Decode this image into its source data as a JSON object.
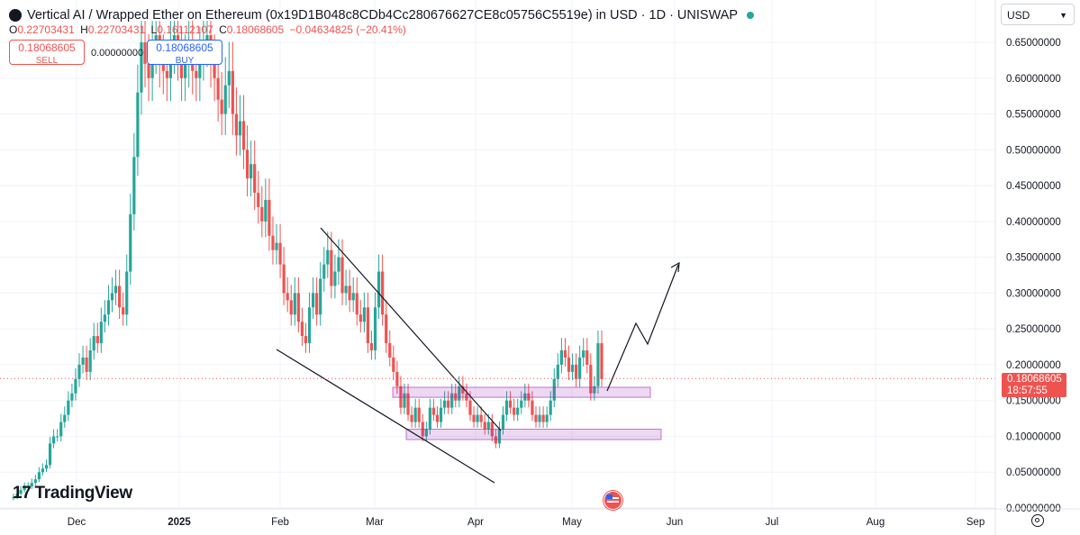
{
  "header": {
    "title": "Vertical AI / Wrapped Ether on Ethereum (0x19D1B048c8CDb4Cc280676627CE8c05756C5519e) in USD · 1D · UNISWAP",
    "o_label": "O",
    "o_value": "0.22703431",
    "h_label": "H",
    "h_value": "0.22703431",
    "l_label": "L",
    "l_value": "0.16112107",
    "c_label": "C",
    "c_value": "0.18068605",
    "change": "−0.04634825 (−20.41%)"
  },
  "trade": {
    "sell_price": "0.18068605",
    "sell_label": "SELL",
    "spread": "0.00000000",
    "buy_price": "0.18068605",
    "buy_label": "BUY"
  },
  "currency": "USD",
  "brand": "TradingView",
  "last_price": {
    "value": "0.18068605",
    "countdown": "18:57:55"
  },
  "colors": {
    "up": "#26a69a",
    "down": "#ef5350",
    "zone": "#9c27b0",
    "line": "#131722"
  },
  "chart_data": {
    "type": "candlestick",
    "y_ticks": [
      "0.65000000",
      "0.60000000",
      "0.55000000",
      "0.50000000",
      "0.45000000",
      "0.40000000",
      "0.35000000",
      "0.30000000",
      "0.25000000",
      "0.20000000",
      "0.15000000",
      "0.10000000",
      "0.05000000",
      "0.00000000"
    ],
    "ylim": [
      0.0,
      0.65
    ],
    "x_ticks": [
      "Dec",
      "2025",
      "Feb",
      "Mar",
      "Apr",
      "May",
      "Jun",
      "Jul",
      "Aug",
      "Sep"
    ],
    "candles_close": [
      0.015,
      0.02,
      0.025,
      0.03,
      0.03,
      0.035,
      0.04,
      0.05,
      0.055,
      0.06,
      0.09,
      0.1,
      0.1,
      0.12,
      0.13,
      0.15,
      0.16,
      0.18,
      0.2,
      0.21,
      0.19,
      0.22,
      0.24,
      0.23,
      0.26,
      0.27,
      0.29,
      0.3,
      0.31,
      0.28,
      0.27,
      0.33,
      0.41,
      0.49,
      0.58,
      0.65,
      0.62,
      0.6,
      0.64,
      0.66,
      0.62,
      0.61,
      0.6,
      0.64,
      0.66,
      0.63,
      0.6,
      0.62,
      0.65,
      0.61,
      0.6,
      0.63,
      0.65,
      0.66,
      0.62,
      0.6,
      0.57,
      0.55,
      0.59,
      0.61,
      0.55,
      0.52,
      0.54,
      0.5,
      0.46,
      0.48,
      0.44,
      0.42,
      0.4,
      0.43,
      0.38,
      0.36,
      0.37,
      0.34,
      0.3,
      0.29,
      0.27,
      0.3,
      0.26,
      0.24,
      0.23,
      0.28,
      0.3,
      0.27,
      0.32,
      0.34,
      0.36,
      0.31,
      0.33,
      0.35,
      0.3,
      0.31,
      0.29,
      0.3,
      0.27,
      0.26,
      0.28,
      0.23,
      0.22,
      0.28,
      0.33,
      0.27,
      0.23,
      0.21,
      0.19,
      0.17,
      0.14,
      0.16,
      0.13,
      0.12,
      0.14,
      0.12,
      0.1,
      0.11,
      0.14,
      0.13,
      0.12,
      0.14,
      0.15,
      0.14,
      0.16,
      0.15,
      0.17,
      0.16,
      0.15,
      0.13,
      0.12,
      0.13,
      0.12,
      0.11,
      0.12,
      0.1,
      0.09,
      0.11,
      0.13,
      0.15,
      0.14,
      0.13,
      0.14,
      0.15,
      0.16,
      0.15,
      0.13,
      0.12,
      0.13,
      0.12,
      0.13,
      0.15,
      0.18,
      0.2,
      0.22,
      0.21,
      0.19,
      0.2,
      0.18,
      0.21,
      0.22,
      0.2,
      0.16,
      0.17,
      0.23,
      0.18
    ],
    "zones": [
      {
        "from": 0.1545,
        "to": 0.1685
      },
      {
        "from": 0.0955,
        "to": 0.11
      }
    ],
    "last_price": 0.18068605
  }
}
